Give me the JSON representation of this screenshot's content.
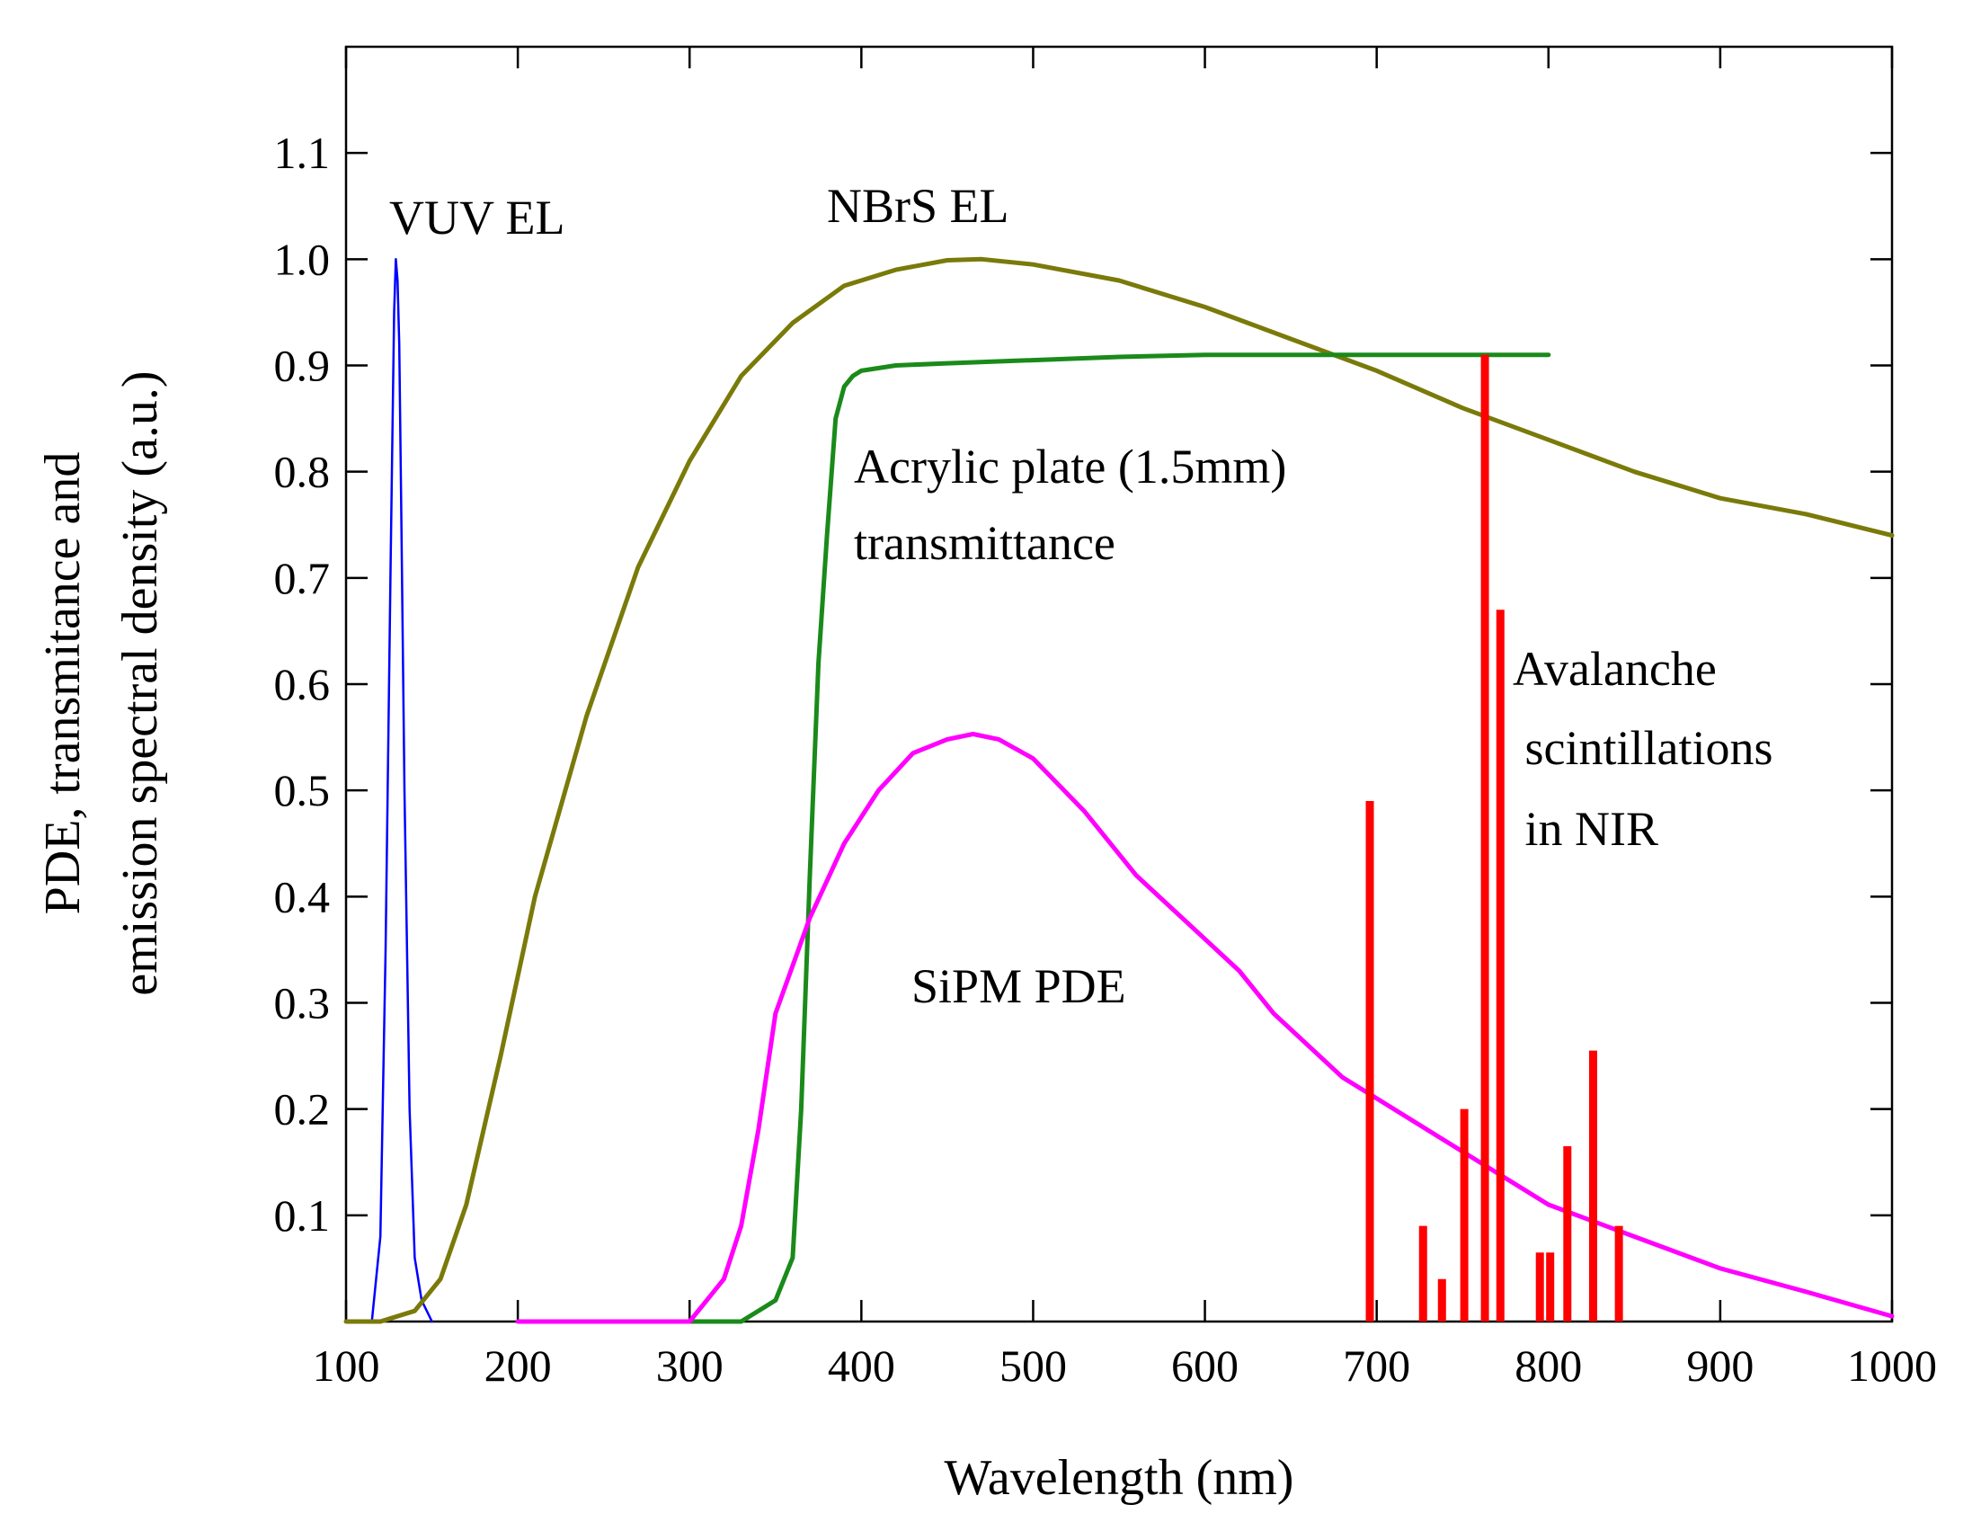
{
  "chart_data": {
    "type": "line",
    "title": "",
    "xlabel": "Wavelength (nm)",
    "ylabel_lines": [
      "PDE, transmitance and",
      "emission spectral density (a.u.)"
    ],
    "xlim": [
      100,
      1000
    ],
    "ylim": [
      0,
      1.2
    ],
    "xticks": [
      100,
      200,
      300,
      400,
      500,
      600,
      700,
      800,
      900,
      1000
    ],
    "xtick_labels": [
      "100",
      "200",
      "300",
      "400",
      "500",
      "600",
      "700",
      "800",
      "900",
      "1000"
    ],
    "yticks": [
      0.1,
      0.2,
      0.3,
      0.4,
      0.5,
      0.6,
      0.7,
      0.8,
      0.9,
      1.0,
      1.1
    ],
    "ytick_labels": [
      "0.1",
      "0.2",
      "0.3",
      "0.4",
      "0.5",
      "0.6",
      "0.7",
      "0.8",
      "0.9",
      "1.0",
      "1.1"
    ],
    "grid": false,
    "series": [
      {
        "name": "VUV EL",
        "color": "#0000ff",
        "kind": "line",
        "x": [
          115,
          120,
          123,
          126,
          128,
          129,
          130,
          131,
          132,
          134,
          137,
          140,
          144,
          150
        ],
        "y": [
          0.0,
          0.08,
          0.35,
          0.72,
          0.95,
          1.0,
          0.98,
          0.92,
          0.78,
          0.5,
          0.2,
          0.06,
          0.02,
          0.0
        ]
      },
      {
        "name": "NBrS EL",
        "color": "#7a7a0a",
        "kind": "line",
        "x": [
          100,
          120,
          140,
          155,
          170,
          190,
          210,
          240,
          270,
          300,
          330,
          360,
          390,
          420,
          450,
          470,
          500,
          550,
          600,
          650,
          700,
          750,
          800,
          850,
          900,
          950,
          1000
        ],
        "y": [
          0.0,
          0.0,
          0.01,
          0.04,
          0.11,
          0.25,
          0.4,
          0.57,
          0.71,
          0.81,
          0.89,
          0.94,
          0.975,
          0.99,
          0.999,
          1.0,
          0.995,
          0.98,
          0.955,
          0.925,
          0.895,
          0.86,
          0.83,
          0.8,
          0.775,
          0.76,
          0.74
        ]
      },
      {
        "name": "Acrylic plate (1.5mm) transmittance",
        "color": "#1a8a1a",
        "kind": "line",
        "x": [
          300,
          330,
          340,
          350,
          360,
          365,
          370,
          375,
          380,
          385,
          390,
          395,
          400,
          420,
          450,
          500,
          550,
          600,
          650,
          700,
          750,
          800
        ],
        "y": [
          0.0,
          0.0,
          0.01,
          0.02,
          0.06,
          0.2,
          0.42,
          0.62,
          0.74,
          0.85,
          0.88,
          0.89,
          0.895,
          0.9,
          0.902,
          0.905,
          0.908,
          0.91,
          0.91,
          0.91,
          0.91,
          0.91
        ]
      },
      {
        "name": "SiPM PDE",
        "color": "#ff00ff",
        "kind": "line",
        "x": [
          200,
          300,
          310,
          320,
          330,
          340,
          350,
          370,
          390,
          410,
          430,
          450,
          465,
          480,
          500,
          530,
          560,
          600,
          620,
          640,
          680,
          720,
          760,
          800,
          850,
          900,
          950,
          1000
        ],
        "y": [
          0.0,
          0.0,
          0.02,
          0.04,
          0.09,
          0.18,
          0.29,
          0.38,
          0.45,
          0.5,
          0.535,
          0.548,
          0.553,
          0.548,
          0.53,
          0.48,
          0.42,
          0.36,
          0.33,
          0.29,
          0.23,
          0.19,
          0.15,
          0.11,
          0.08,
          0.05,
          0.028,
          0.005
        ]
      },
      {
        "name": "Avalanche scintillations in NIR",
        "color": "#ff0000",
        "kind": "lines",
        "x": [
          696,
          727,
          738,
          751,
          763,
          772,
          795,
          801,
          811,
          826,
          841
        ],
        "y": [
          0.49,
          0.09,
          0.04,
          0.2,
          0.91,
          0.67,
          0.065,
          0.065,
          0.165,
          0.255,
          0.09
        ]
      }
    ],
    "annotations": [
      {
        "series": 0,
        "lines": [
          "VUV EL"
        ]
      },
      {
        "series": 1,
        "lines": [
          "NBrS EL"
        ]
      },
      {
        "series": 2,
        "lines": [
          "Acrylic plate (1.5mm)",
          "transmittance"
        ]
      },
      {
        "series": 3,
        "lines": [
          "SiPM PDE"
        ]
      },
      {
        "series": 4,
        "lines": [
          "Avalanche",
          " scintillations",
          " in NIR"
        ]
      }
    ]
  }
}
